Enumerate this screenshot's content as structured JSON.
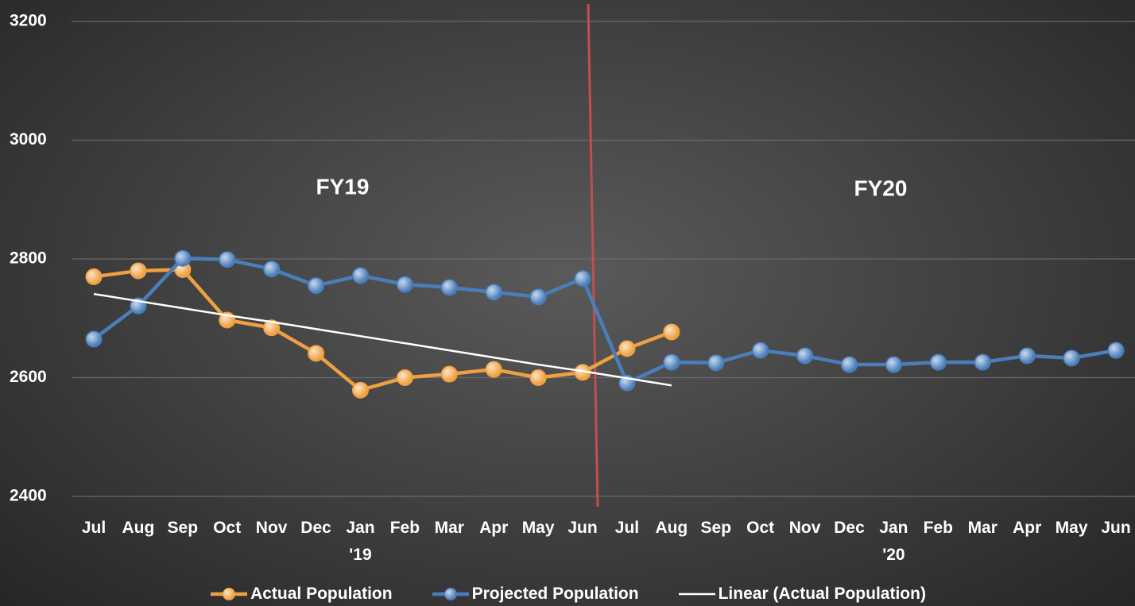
{
  "chart_data": {
    "type": "line",
    "categories": [
      "Jul",
      "Aug",
      "Sep",
      "Oct",
      "Nov",
      "Dec",
      "Jan\n'19",
      "Feb",
      "Mar",
      "Apr",
      "May",
      "Jun",
      "Jul",
      "Aug",
      "Sep",
      "Oct",
      "Nov",
      "Dec",
      "Jan\n'20",
      "Feb",
      "Mar",
      "Apr",
      "May",
      "Jun"
    ],
    "series": [
      {
        "name": "Actual Population",
        "color": "#f0a040",
        "markers": true,
        "values": [
          2770,
          2780,
          2782,
          2697,
          2684,
          2641,
          2579,
          2600,
          2606,
          2614,
          2600,
          2609,
          2649,
          2677,
          null,
          null,
          null,
          null,
          null,
          null,
          null,
          null,
          null,
          null
        ]
      },
      {
        "name": "Projected Population",
        "color": "#4a7ebb",
        "markers": true,
        "values": [
          2665,
          2721,
          2801,
          2799,
          2783,
          2755,
          2772,
          2757,
          2752,
          2744,
          2736,
          2767,
          2591,
          2626,
          2625,
          2646,
          2637,
          2622,
          2622,
          2626,
          2626,
          2637,
          2633,
          2646
        ]
      },
      {
        "name": "Linear (Actual Population)",
        "color": "#ffffff",
        "markers": false,
        "values": [
          2741,
          2729,
          2717,
          2705,
          2694,
          2682,
          2670,
          2658,
          2646,
          2634,
          2622,
          2611,
          2599,
          2587,
          null,
          null,
          null,
          null,
          null,
          null,
          null,
          null,
          null,
          null
        ]
      }
    ],
    "annotations": [
      "FY19",
      "FY20"
    ],
    "ylim": [
      2400,
      3200
    ],
    "yticks": [
      2400,
      2600,
      2800,
      3000,
      3200
    ],
    "grid": true,
    "legend": "bottom"
  }
}
